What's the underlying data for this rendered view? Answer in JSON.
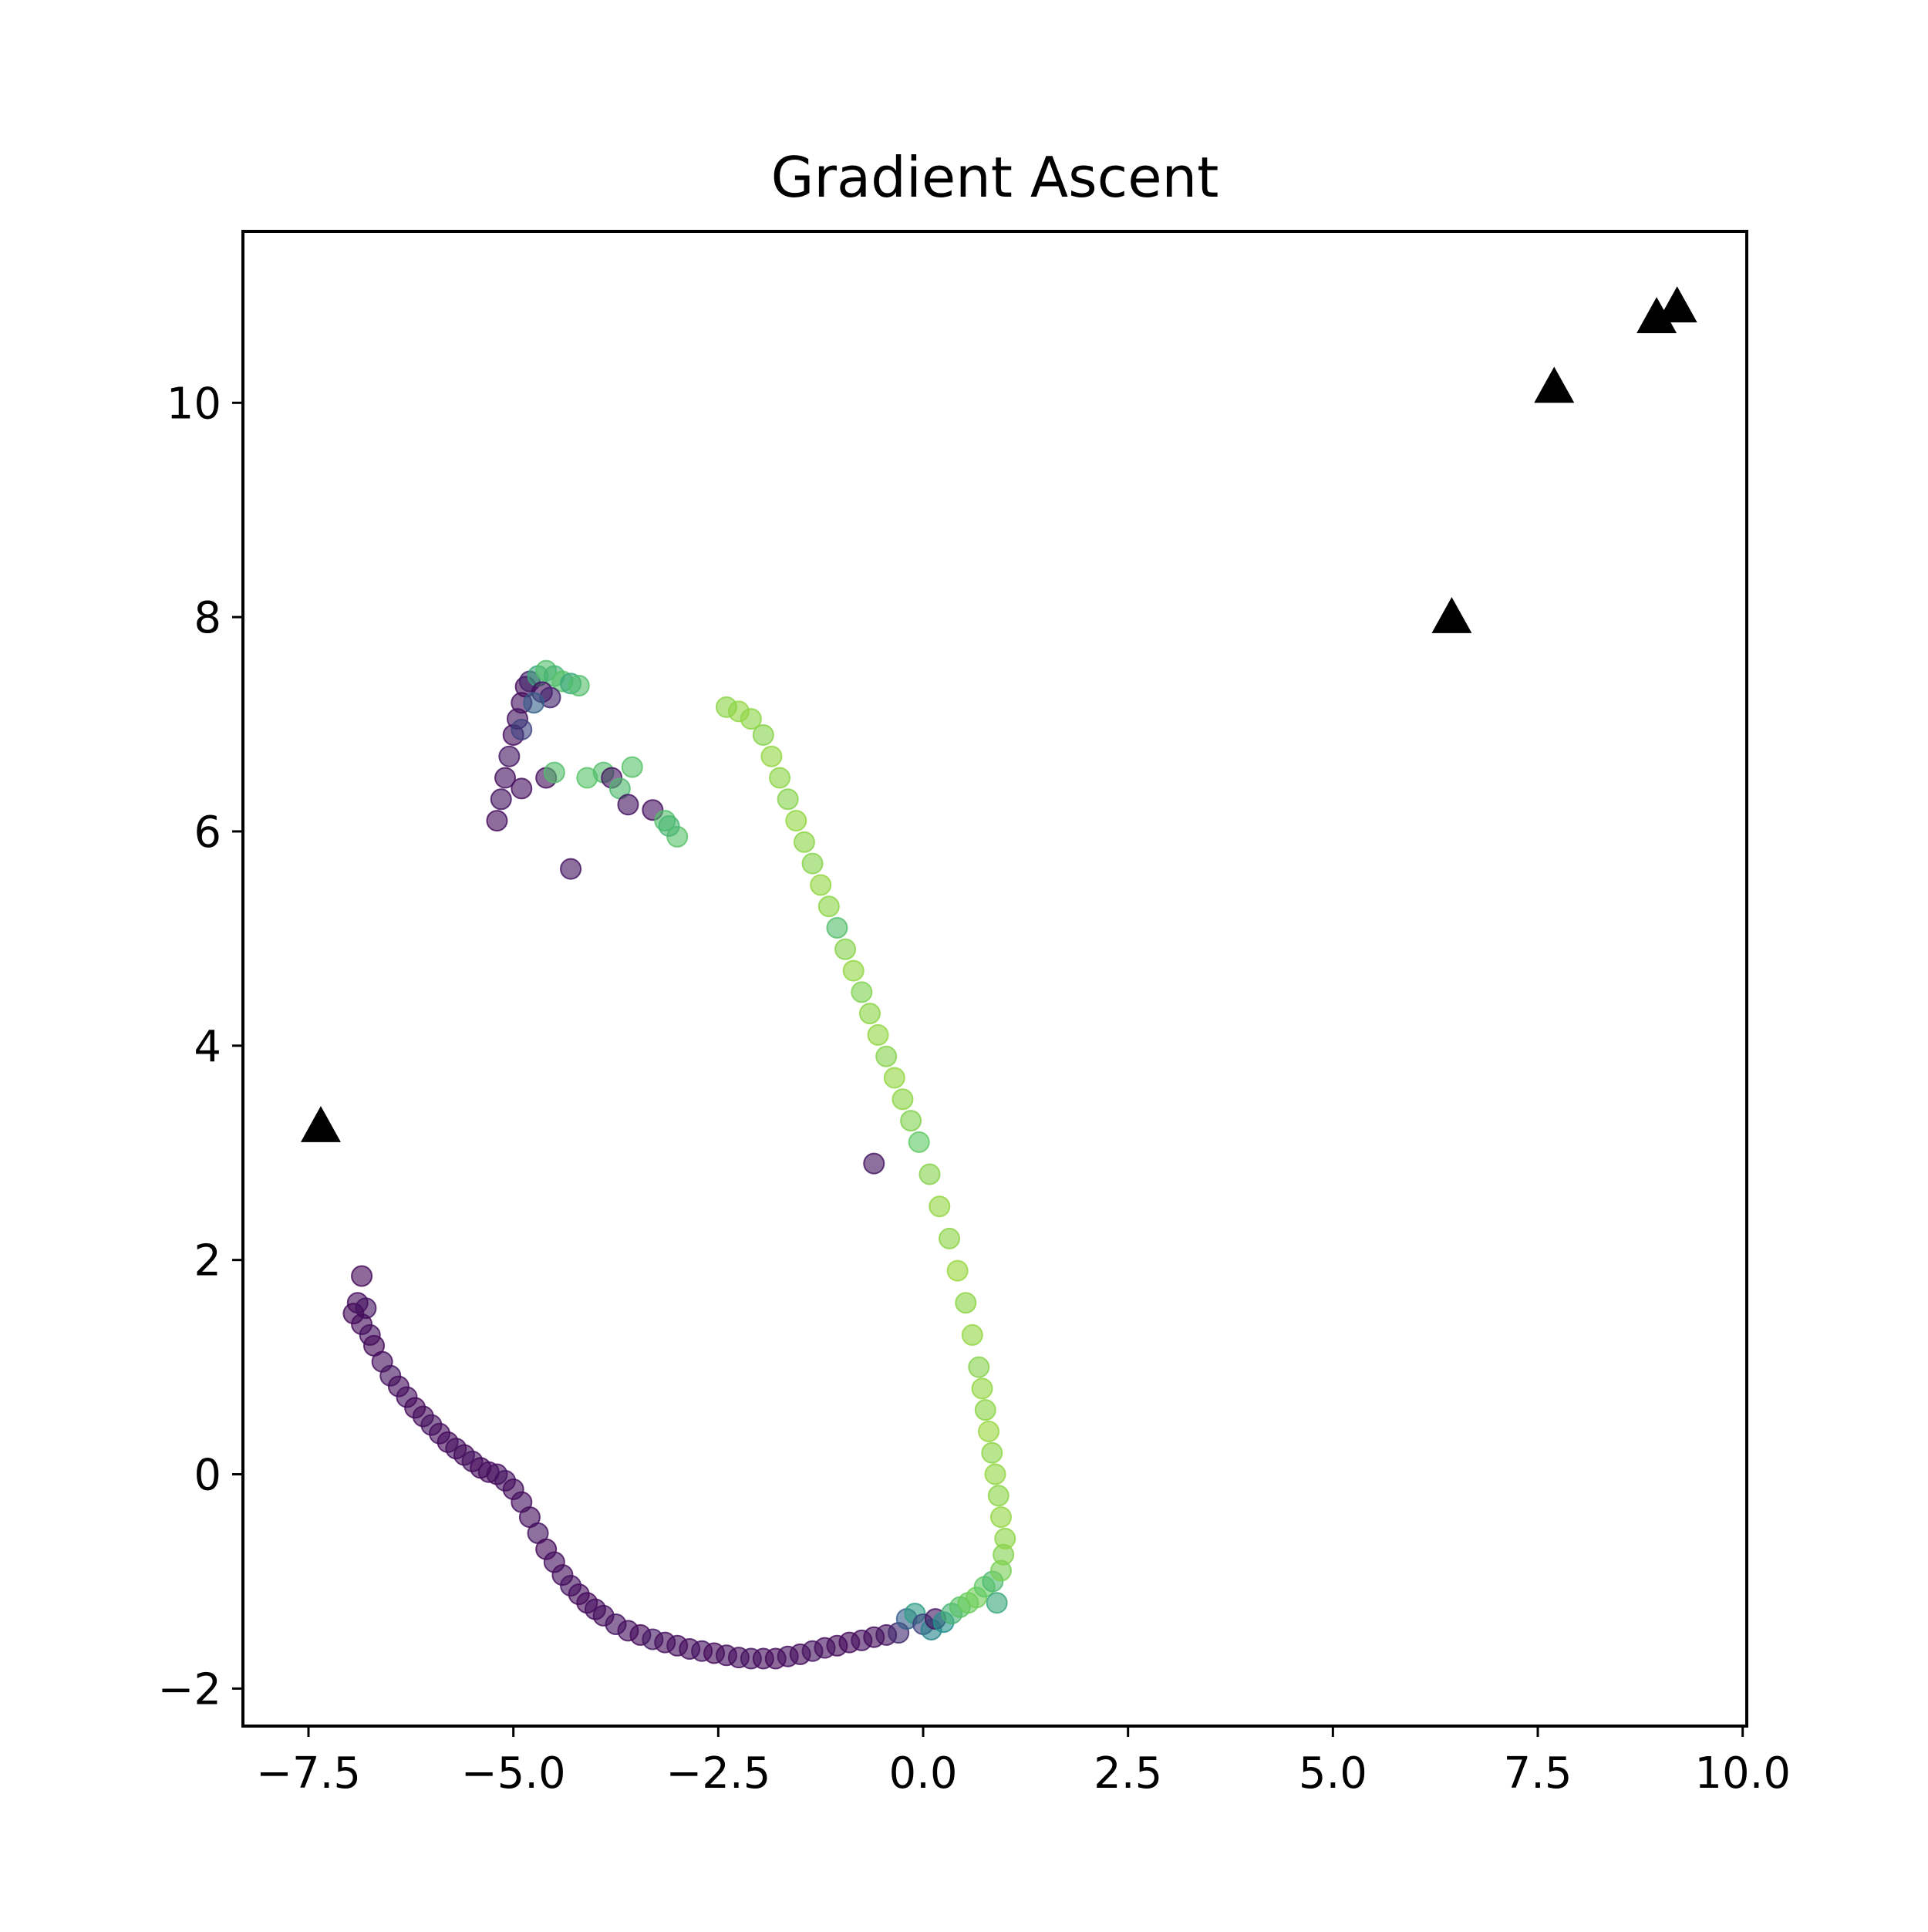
{
  "chart_data": {
    "type": "scatter",
    "title": "Gradient Ascent",
    "xlabel": "",
    "ylabel": "",
    "xlim": [
      -8.3,
      10.05
    ],
    "ylim": [
      -2.35,
      11.6
    ],
    "grid": false,
    "legend": "none",
    "xticks": [
      -7.5,
      -5.0,
      -2.5,
      0.0,
      2.5,
      5.0,
      7.5,
      10.0
    ],
    "xtick_labels": [
      "−7.5",
      "−5.0",
      "−2.5",
      "0.0",
      "2.5",
      "5.0",
      "7.5",
      "10.0"
    ],
    "yticks": [
      -2,
      0,
      2,
      4,
      6,
      8,
      10
    ],
    "ytick_labels": [
      "−2",
      "0",
      "2",
      "4",
      "6",
      "8",
      "10"
    ],
    "colormap": [
      "#440154",
      "#3b528b",
      "#21918c",
      "#5ec962",
      "#b5de2b"
    ],
    "series": [
      {
        "marker": "circle",
        "opacity": 0.6,
        "points": [
          [
            -6.85,
            1.85,
            0.02
          ],
          [
            -6.9,
            1.6,
            0.03
          ],
          [
            -6.95,
            1.5,
            0.02
          ],
          [
            -6.8,
            1.55,
            0.05
          ],
          [
            -6.85,
            1.4,
            0.03
          ],
          [
            -6.75,
            1.3,
            0.04
          ],
          [
            -6.7,
            1.2,
            0.02
          ],
          [
            -6.6,
            1.05,
            0.03
          ],
          [
            -6.5,
            0.92,
            0.05
          ],
          [
            -6.4,
            0.82,
            0.03
          ],
          [
            -6.3,
            0.72,
            0.04
          ],
          [
            -6.2,
            0.62,
            0.02
          ],
          [
            -6.1,
            0.54,
            0.03
          ],
          [
            -6.0,
            0.46,
            0.05
          ],
          [
            -5.9,
            0.38,
            0.03
          ],
          [
            -5.8,
            0.3,
            0.02
          ],
          [
            -5.7,
            0.24,
            0.04
          ],
          [
            -5.6,
            0.18,
            0.03
          ],
          [
            -5.5,
            0.12,
            0.05
          ],
          [
            -5.4,
            0.06,
            0.02
          ],
          [
            -5.3,
            0.02,
            0.03
          ],
          [
            -5.2,
            0.0,
            0.04
          ],
          [
            -5.1,
            -0.06,
            0.05
          ],
          [
            -5.0,
            -0.14,
            0.03
          ],
          [
            -4.9,
            -0.26,
            0.04
          ],
          [
            -4.8,
            -0.4,
            0.03
          ],
          [
            -4.7,
            -0.55,
            0.05
          ],
          [
            -4.6,
            -0.7,
            0.02
          ],
          [
            -4.5,
            -0.82,
            0.04
          ],
          [
            -4.4,
            -0.94,
            0.03
          ],
          [
            -4.3,
            -1.04,
            0.05
          ],
          [
            -4.2,
            -1.12,
            0.03
          ],
          [
            -4.1,
            -1.2,
            0.02
          ],
          [
            -4.0,
            -1.26,
            0.04
          ],
          [
            -3.9,
            -1.32,
            0.03
          ],
          [
            -3.75,
            -1.4,
            0.05
          ],
          [
            -3.6,
            -1.46,
            0.04
          ],
          [
            -3.45,
            -1.5,
            0.02
          ],
          [
            -3.3,
            -1.54,
            0.07
          ],
          [
            -3.15,
            -1.57,
            0.03
          ],
          [
            -3.0,
            -1.6,
            0.04
          ],
          [
            -2.85,
            -1.63,
            0.03
          ],
          [
            -2.7,
            -1.65,
            0.05
          ],
          [
            -2.55,
            -1.67,
            0.02
          ],
          [
            -2.4,
            -1.69,
            0.04
          ],
          [
            -2.25,
            -1.71,
            0.03
          ],
          [
            -2.1,
            -1.72,
            0.05
          ],
          [
            -1.95,
            -1.72,
            0.03
          ],
          [
            -1.8,
            -1.72,
            0.02
          ],
          [
            -1.65,
            -1.7,
            0.04
          ],
          [
            -1.5,
            -1.68,
            0.03
          ],
          [
            -1.35,
            -1.65,
            0.05
          ],
          [
            -1.2,
            -1.62,
            0.04
          ],
          [
            -1.05,
            -1.6,
            0.03
          ],
          [
            -0.9,
            -1.57,
            0.02
          ],
          [
            -0.75,
            -1.55,
            0.04
          ],
          [
            -0.6,
            -1.52,
            0.03
          ],
          [
            -0.45,
            -1.5,
            0.05
          ],
          [
            -0.3,
            -1.48,
            0.12
          ],
          [
            -0.2,
            -1.35,
            0.3
          ],
          [
            -0.1,
            -1.3,
            0.55
          ],
          [
            0.0,
            -1.4,
            0.2
          ],
          [
            0.1,
            -1.45,
            0.45
          ],
          [
            0.15,
            -1.35,
            0.06
          ],
          [
            0.25,
            -1.38,
            0.5
          ],
          [
            0.35,
            -1.3,
            0.65
          ],
          [
            0.45,
            -1.24,
            0.72
          ],
          [
            0.55,
            -1.2,
            0.78
          ],
          [
            0.65,
            -1.15,
            0.8
          ],
          [
            0.75,
            -1.05,
            0.75
          ],
          [
            0.85,
            -1.0,
            0.68
          ],
          [
            0.9,
            -1.2,
            0.6
          ],
          [
            0.95,
            -0.9,
            0.82
          ],
          [
            0.98,
            -0.75,
            0.85
          ],
          [
            1.0,
            -0.6,
            0.88
          ],
          [
            0.95,
            -0.4,
            0.9
          ],
          [
            0.92,
            -0.2,
            0.88
          ],
          [
            0.88,
            0.0,
            0.9
          ],
          [
            0.84,
            0.2,
            0.88
          ],
          [
            0.8,
            0.4,
            0.92
          ],
          [
            0.76,
            0.6,
            0.88
          ],
          [
            0.72,
            0.8,
            0.9
          ],
          [
            0.68,
            1.0,
            0.86
          ],
          [
            0.6,
            1.3,
            0.9
          ],
          [
            0.52,
            1.6,
            0.88
          ],
          [
            0.42,
            1.9,
            0.92
          ],
          [
            0.32,
            2.2,
            0.88
          ],
          [
            0.2,
            2.5,
            0.9
          ],
          [
            0.08,
            2.8,
            0.86
          ],
          [
            -0.05,
            3.1,
            0.75
          ],
          [
            -0.15,
            3.3,
            0.85
          ],
          [
            -0.25,
            3.5,
            0.88
          ],
          [
            -0.35,
            3.7,
            0.9
          ],
          [
            -0.45,
            3.9,
            0.86
          ],
          [
            -0.55,
            4.1,
            0.9
          ],
          [
            -0.65,
            4.3,
            0.88
          ],
          [
            -0.75,
            4.5,
            0.84
          ],
          [
            -0.85,
            4.7,
            0.9
          ],
          [
            -0.95,
            4.9,
            0.86
          ],
          [
            -1.05,
            5.1,
            0.7
          ],
          [
            -1.15,
            5.3,
            0.88
          ],
          [
            -1.25,
            5.5,
            0.9
          ],
          [
            -1.35,
            5.7,
            0.86
          ],
          [
            -1.45,
            5.9,
            0.88
          ],
          [
            -1.55,
            6.1,
            0.9
          ],
          [
            -1.65,
            6.3,
            0.86
          ],
          [
            -1.75,
            6.5,
            0.88
          ],
          [
            -1.85,
            6.7,
            0.9
          ],
          [
            -1.95,
            6.9,
            0.86
          ],
          [
            -2.1,
            7.05,
            0.88
          ],
          [
            -2.25,
            7.12,
            0.9
          ],
          [
            -2.4,
            7.16,
            0.88
          ],
          [
            -0.6,
            2.9,
            0.05
          ],
          [
            -5.2,
            6.1,
            0.03
          ],
          [
            -5.15,
            6.3,
            0.05
          ],
          [
            -5.1,
            6.5,
            0.04
          ],
          [
            -5.05,
            6.7,
            0.06
          ],
          [
            -5.0,
            6.9,
            0.03
          ],
          [
            -4.95,
            7.05,
            0.05
          ],
          [
            -4.9,
            7.2,
            0.04
          ],
          [
            -4.85,
            7.35,
            0.02
          ],
          [
            -4.8,
            7.4,
            0.1
          ],
          [
            -4.7,
            7.45,
            0.6
          ],
          [
            -4.6,
            7.5,
            0.7
          ],
          [
            -4.5,
            7.45,
            0.65
          ],
          [
            -4.4,
            7.4,
            0.72
          ],
          [
            -4.3,
            7.38,
            0.6
          ],
          [
            -4.2,
            7.36,
            0.7
          ],
          [
            -4.65,
            7.3,
            0.04
          ],
          [
            -4.55,
            7.25,
            0.1
          ],
          [
            -4.75,
            7.2,
            0.3
          ],
          [
            -4.9,
            6.95,
            0.2
          ],
          [
            -4.9,
            6.4,
            0.04
          ],
          [
            -4.6,
            6.5,
            0.03
          ],
          [
            -4.5,
            6.55,
            0.7
          ],
          [
            -4.3,
            5.65,
            0.05
          ],
          [
            -4.1,
            6.5,
            0.72
          ],
          [
            -3.9,
            6.55,
            0.7
          ],
          [
            -3.8,
            6.5,
            0.05
          ],
          [
            -3.7,
            6.4,
            0.68
          ],
          [
            -3.6,
            6.25,
            0.05
          ],
          [
            -3.55,
            6.6,
            0.72
          ],
          [
            -3.3,
            6.2,
            0.04
          ],
          [
            -3.15,
            6.1,
            0.7
          ],
          [
            -3.0,
            5.95,
            0.72
          ],
          [
            -3.1,
            6.05,
            0.66
          ]
        ]
      },
      {
        "marker": "triangle",
        "color": "#000000",
        "points": [
          [
            -7.35,
            3.25
          ],
          [
            6.45,
            8.0
          ],
          [
            7.7,
            10.15
          ],
          [
            8.95,
            10.8
          ],
          [
            9.2,
            10.9
          ]
        ]
      }
    ]
  }
}
